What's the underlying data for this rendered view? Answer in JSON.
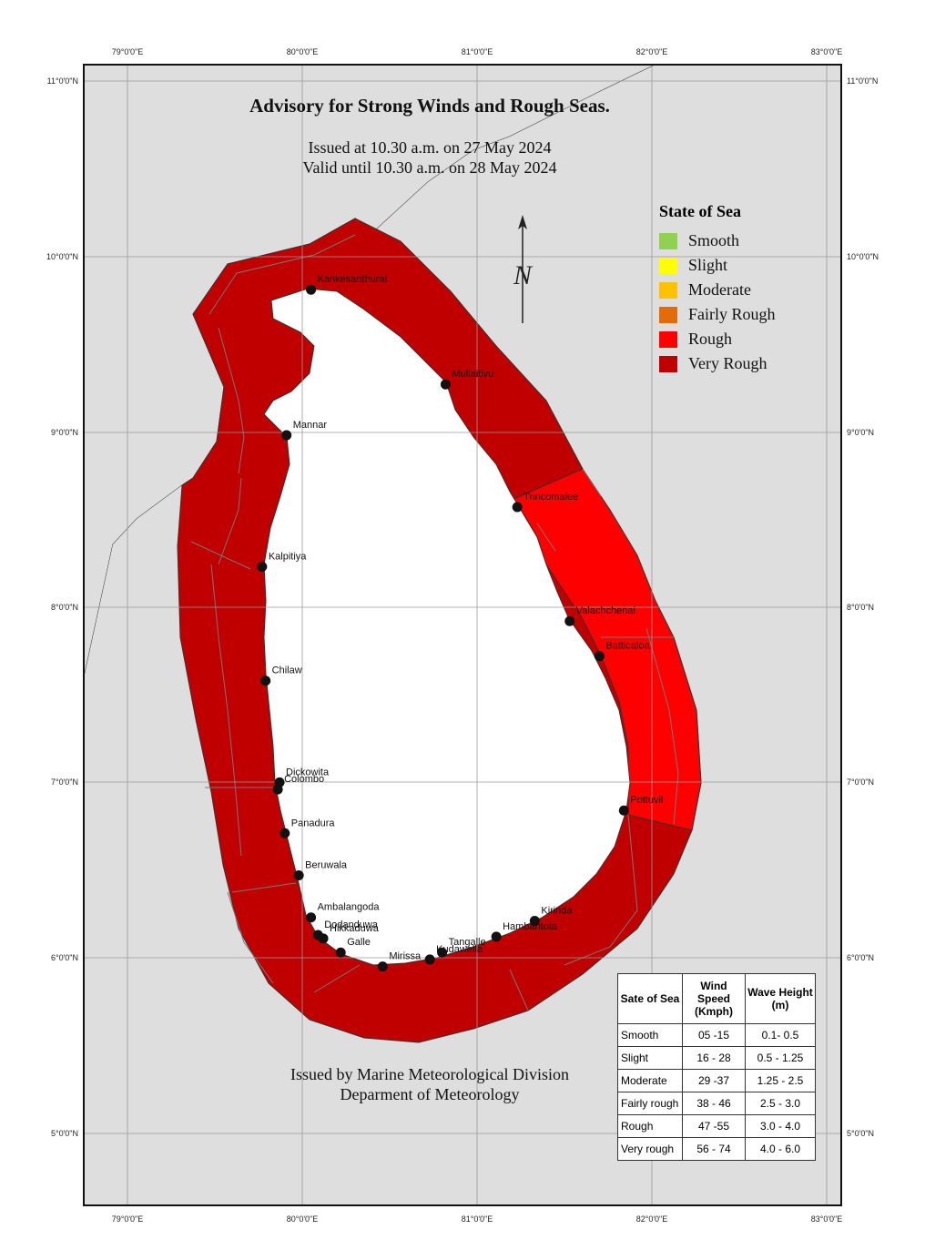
{
  "title": "Advisory for Strong Winds and Rough Seas.",
  "issued": "Issued at 10.30 a.m. on 27 May 2024",
  "valid": "Valid until 10.30 a.m. on 28 May 2024",
  "footer": {
    "line1": "Issued by Marine Meteorological Division",
    "line2": "Deparment of Meteorology"
  },
  "north_label": "N",
  "colors": {
    "land_grey": "#dedede",
    "island": "#ffffff",
    "very_rough": "#c00000",
    "rough": "#ff0000"
  },
  "axes": {
    "lon_labels": [
      "79°0'0\"E",
      "80°0'0\"E",
      "81°0'0\"E",
      "82°0'0\"E",
      "83°0'0\"E"
    ],
    "lat_labels": [
      "11°0'0\"N",
      "10°0'0\"N",
      "9°0'0\"N",
      "8°0'0\"N",
      "7°0'0\"N",
      "6°0'0\"N",
      "5°0'0\"N"
    ]
  },
  "legend": {
    "title": "State of Sea",
    "items": [
      {
        "label": "Smooth",
        "color": "#92d050"
      },
      {
        "label": "Slight",
        "color": "#ffff00"
      },
      {
        "label": "Moderate",
        "color": "#ffc000"
      },
      {
        "label": "Fairly Rough",
        "color": "#e26b0a"
      },
      {
        "label": "Rough",
        "color": "#ff0000"
      },
      {
        "label": "Very Rough",
        "color": "#c00000"
      }
    ]
  },
  "stations": [
    {
      "name": "Kankesanthurai",
      "lat": 9.81,
      "lon": 80.05
    },
    {
      "name": "Mullaitivu",
      "lat": 9.27,
      "lon": 80.82
    },
    {
      "name": "Mannar",
      "lat": 8.98,
      "lon": 79.91
    },
    {
      "name": "Trincomalee",
      "lat": 8.57,
      "lon": 81.23
    },
    {
      "name": "Kalpitiya",
      "lat": 8.23,
      "lon": 79.77
    },
    {
      "name": "Valachchenai",
      "lat": 7.92,
      "lon": 81.53
    },
    {
      "name": "Batticaloa",
      "lat": 7.72,
      "lon": 81.7
    },
    {
      "name": "Chilaw",
      "lat": 7.58,
      "lon": 79.79
    },
    {
      "name": "Dickowita",
      "lat": 7.0,
      "lon": 79.87
    },
    {
      "name": "Colombo",
      "lat": 6.96,
      "lon": 79.86
    },
    {
      "name": "Pottuvil",
      "lat": 6.84,
      "lon": 81.84
    },
    {
      "name": "Panadura",
      "lat": 6.71,
      "lon": 79.9
    },
    {
      "name": "Beruwala",
      "lat": 6.47,
      "lon": 79.98
    },
    {
      "name": "Ambalangoda",
      "lat": 6.23,
      "lon": 80.05
    },
    {
      "name": "Kirinda",
      "lat": 6.21,
      "lon": 81.33
    },
    {
      "name": "Hambantota",
      "lat": 6.12,
      "lon": 81.11
    },
    {
      "name": "Dodanduwa",
      "lat": 6.13,
      "lon": 80.09
    },
    {
      "name": "Hikkaduwa",
      "lat": 6.11,
      "lon": 80.12
    },
    {
      "name": "Galle",
      "lat": 6.03,
      "lon": 80.22
    },
    {
      "name": "Tangalle",
      "lat": 6.03,
      "lon": 80.8
    },
    {
      "name": "Kudawella",
      "lat": 5.99,
      "lon": 80.73
    },
    {
      "name": "Mirissa",
      "lat": 5.95,
      "lon": 80.46
    }
  ],
  "sea_state_zones": [
    {
      "zone": "north and west coast",
      "state": "Very Rough"
    },
    {
      "zone": "east coast Trincomalee to Pottuvil",
      "state": "Rough"
    },
    {
      "zone": "south coast",
      "state": "Very Rough"
    }
  ],
  "table": {
    "headers": [
      "Sate of Sea",
      "Wind Speed (Kmph)",
      "Wave Height (m)"
    ],
    "rows": [
      [
        "Smooth",
        "05 -15",
        "0.1- 0.5"
      ],
      [
        "Slight",
        "16 - 28",
        "0.5 - 1.25"
      ],
      [
        "Moderate",
        "29 -37",
        "1.25 - 2.5"
      ],
      [
        "Fairly rough",
        "38 - 46",
        "2.5 - 3.0"
      ],
      [
        "Rough",
        "47 -55",
        "3.0 - 4.0"
      ],
      [
        "Very rough",
        "56 - 74",
        "4.0 - 6.0"
      ]
    ]
  }
}
